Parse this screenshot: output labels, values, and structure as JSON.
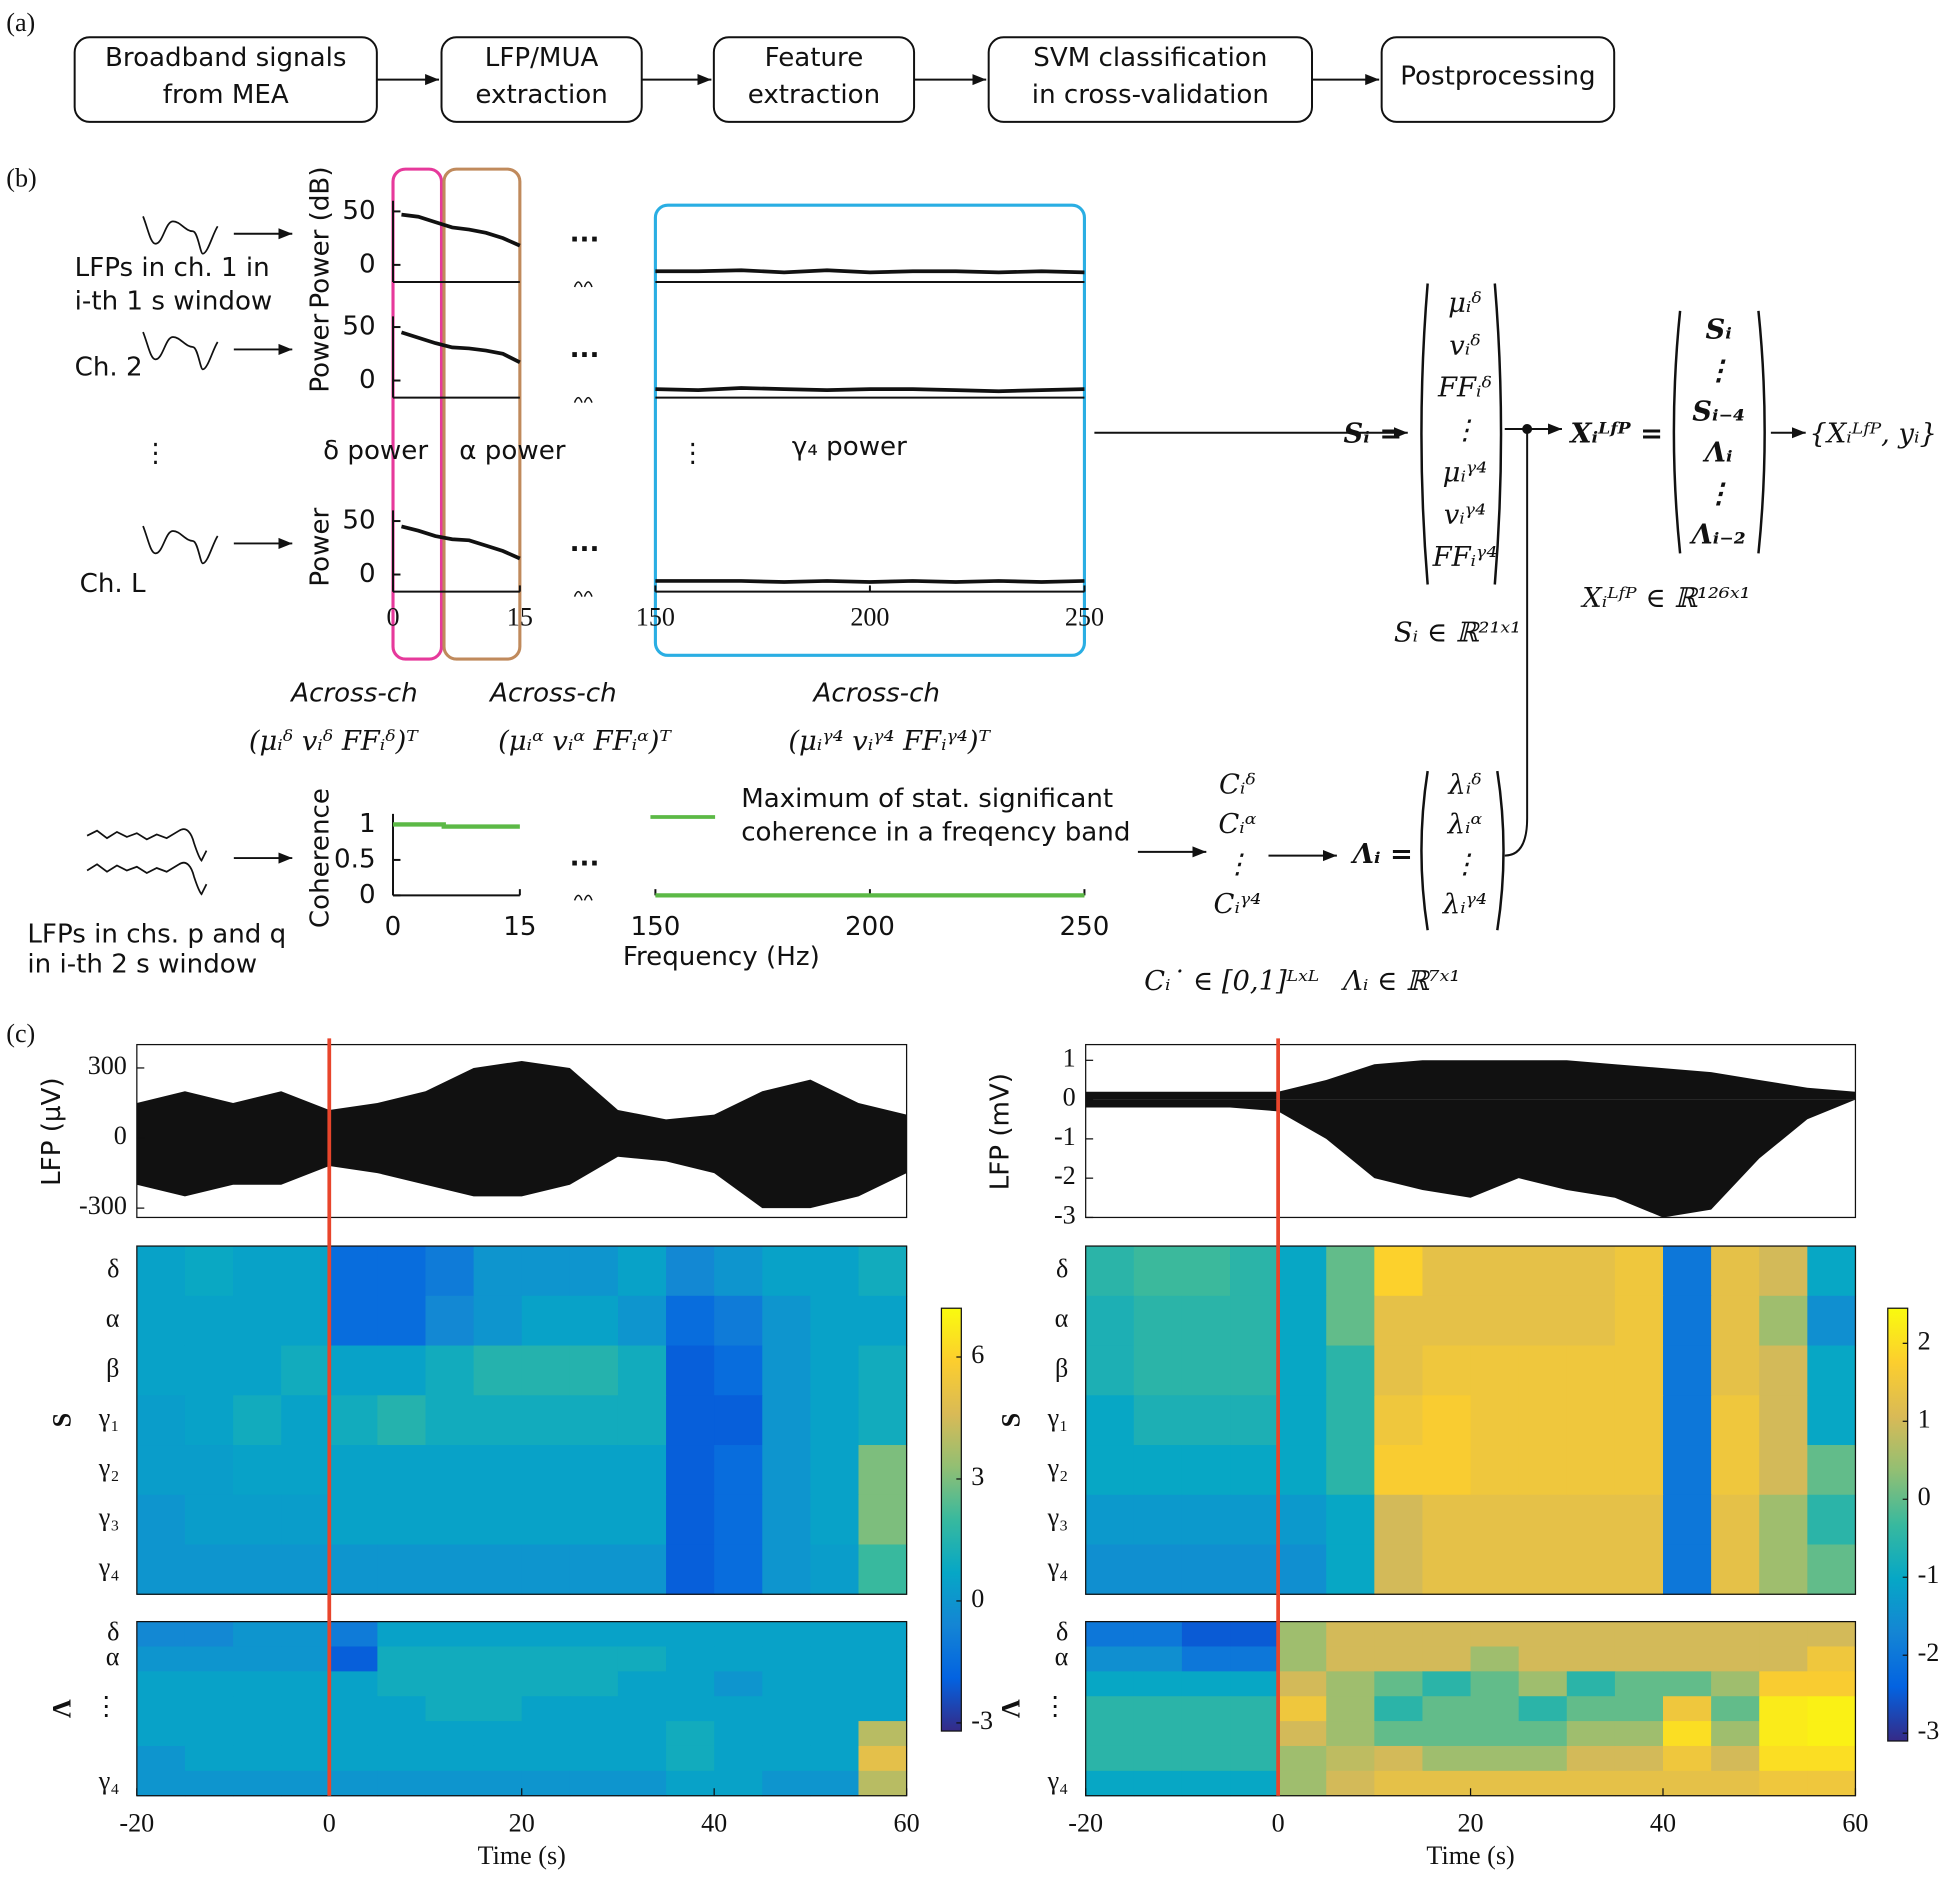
{
  "panel_labels": [
    "(a)",
    "(b)",
    "(c)"
  ],
  "pipeline": [
    [
      "Broadband signals",
      "from MEA"
    ],
    [
      "LFP/MUA",
      "extraction"
    ],
    [
      "Feature",
      "extraction"
    ],
    [
      "SVM classification",
      "in cross-validation"
    ],
    [
      "Postprocessing"
    ]
  ],
  "features": {
    "channel_labels": [
      [
        "LFPs in ch. 1 in",
        "i-th 1 s window"
      ],
      [
        "Ch. 2"
      ],
      [
        "Ch. L"
      ]
    ],
    "vdots": "⋮",
    "ellipsis": "...",
    "power": {
      "ylabels": [
        "Power (dB)",
        "Power",
        "Power"
      ],
      "ylim": [
        -16,
        60
      ],
      "yticks": [
        0,
        50
      ],
      "xticks": [
        0,
        15,
        150,
        200,
        250
      ],
      "curves": [
        {
          "x_low": [
            1,
            3,
            5,
            7,
            9,
            11,
            13,
            15
          ],
          "values_low": [
            47,
            45,
            40,
            35,
            33,
            30,
            25,
            18
          ],
          "x_high": [
            150,
            160,
            170,
            180,
            190,
            200,
            210,
            220,
            230,
            240,
            250
          ],
          "values_high": [
            -6,
            -6,
            -5,
            -7,
            -5,
            -7,
            -6,
            -6,
            -7,
            -6,
            -7
          ]
        },
        {
          "x_low": [
            1,
            3,
            5,
            7,
            9,
            11,
            13,
            15
          ],
          "values_low": [
            45,
            40,
            35,
            31,
            30,
            28,
            25,
            17
          ],
          "x_high": [
            150,
            160,
            170,
            180,
            190,
            200,
            210,
            220,
            230,
            240,
            250
          ],
          "values_high": [
            -8,
            -9,
            -7,
            -8,
            -9,
            -8,
            -8,
            -9,
            -10,
            -9,
            -8
          ]
        },
        {
          "x_low": [
            1,
            3,
            5,
            7,
            9,
            11,
            13,
            15
          ],
          "values_low": [
            45,
            41,
            36,
            33,
            32,
            27,
            22,
            15
          ],
          "x_high": [
            150,
            160,
            170,
            180,
            190,
            200,
            210,
            220,
            230,
            240,
            250
          ],
          "values_high": [
            -6,
            -6,
            -6,
            -7,
            -6,
            -7,
            -6,
            -7,
            -6,
            -7,
            -6
          ]
        }
      ]
    },
    "bands": [
      {
        "label": "δ power",
        "color": "#e6399b",
        "across": "Across-ch",
        "vector": "(μᵢᵟ   vᵢᵟ   FFᵢᵟ)ᵀ"
      },
      {
        "label": "α power",
        "color": "#c08a5c",
        "across": "Across-ch",
        "vector": "(μᵢᵅ   vᵢᵅ   FFᵢᵅ)ᵀ"
      },
      {
        "label": "γ₄ power",
        "color": "#2aaee3",
        "across": "Across-ch",
        "vector": "(μᵢᵞ⁴   vᵢᵞ⁴   FFᵢᵞ⁴)ᵀ"
      }
    ],
    "coherence": {
      "input_label": [
        "LFPs in chs. p and q",
        "in i-th 2 s window"
      ],
      "ylabel": "Coherence",
      "xlabel": "Frequency (Hz)",
      "ylim": [
        -0.05,
        1.15
      ],
      "yticks": [
        0,
        0.5,
        1
      ],
      "xticks": [
        0,
        15,
        150,
        200,
        250
      ],
      "color": "#5cb946",
      "legend": [
        "Maximum of stat. significant",
        "coherence in a freqency band"
      ],
      "x_low": [
        0,
        6,
        6,
        15
      ],
      "values_low": [
        1,
        1,
        0.97,
        0.97
      ],
      "x_high": [
        150,
        250
      ],
      "values_high": [
        0,
        0
      ]
    },
    "equations": {
      "S_lhs": "Sᵢ =",
      "S_items": [
        "μᵢᵟ",
        "vᵢᵟ",
        "FFᵢᵟ",
        "⋮",
        "μᵢᵞ⁴",
        "vᵢᵞ⁴",
        "FFᵢᵞ⁴"
      ],
      "S_dim": "Sᵢ ∈ ℝ²¹ˣ¹",
      "X_lhs": "Xᵢᴸᶠᴾ =",
      "X_items": [
        "Sᵢ",
        "⋮",
        "Sᵢ₋₄",
        "Λᵢ",
        "⋮",
        "Λᵢ₋₂"
      ],
      "X_out": "{Xᵢᴸᶠᴾ, yᵢ}",
      "X_dim": "Xᵢᴸᶠᴾ ∈ ℝ¹²⁶ˣ¹",
      "C_items": [
        "Cᵢᵟ",
        "Cᵢᵅ",
        "⋮",
        "Cᵢᵞ⁴"
      ],
      "L_lhs": "Λᵢ =",
      "L_items": [
        "λᵢᵟ",
        "λᵢᵅ",
        "⋮",
        "λᵢᵞ⁴"
      ],
      "C_dim": "Cᵢ˙ ∈ [0,1]ᴸˣᴸ",
      "L_dim": "Λᵢ ∈ ℝ⁷ˣ¹"
    }
  },
  "time_series": {
    "xlim": [
      -20,
      60
    ],
    "xticks": [
      -20,
      0,
      20,
      40,
      60
    ],
    "xlabel": "Time (s)",
    "onset": 0,
    "S_label": "S",
    "L_label": "Λ",
    "S_rows": [
      "δ",
      "α",
      "β",
      "γ₁",
      "γ₂",
      "γ₃",
      "γ₄"
    ],
    "L_rows": [
      "δ",
      "α",
      "⋮",
      "γ₄"
    ],
    "bin_starts": [
      -20,
      -15,
      -10,
      -5,
      0,
      5,
      10,
      15,
      20,
      25,
      30,
      35,
      40,
      45,
      50,
      55
    ],
    "t": [
      -20,
      -15,
      -10,
      -5,
      0,
      5,
      10,
      15,
      20,
      25,
      30,
      35,
      40,
      45,
      50,
      55,
      60
    ],
    "panels": [
      {
        "ylabel": "LFP (µV)",
        "ylim": [
          -340,
          400
        ],
        "yticks": [
          -300,
          0,
          300
        ],
        "upper": [
          150,
          200,
          150,
          200,
          120,
          150,
          200,
          300,
          330,
          300,
          120,
          80,
          100,
          200,
          250,
          150,
          100
        ],
        "lower": [
          -200,
          -250,
          -200,
          -200,
          -120,
          -150,
          -200,
          -250,
          -250,
          -200,
          -80,
          -100,
          -150,
          -300,
          -300,
          -250,
          -150
        ],
        "clim": [
          -3.2,
          7.2
        ],
        "cticks": [
          -3,
          0,
          3,
          6
        ],
        "S": [
          [
            0.5,
            0.8,
            0.5,
            0.5,
            -1.5,
            -1.5,
            -1,
            0,
            0,
            0,
            0.5,
            -0.5,
            0,
            0.5,
            0.5,
            1
          ],
          [
            0.5,
            0.5,
            0.5,
            0.5,
            -1.5,
            -1.5,
            -0.5,
            0,
            0.5,
            0.5,
            0,
            -1.5,
            -1,
            0,
            0.5,
            0.5
          ],
          [
            0.5,
            0.5,
            0.5,
            1,
            0.5,
            0.5,
            1,
            1.5,
            1.5,
            1.5,
            1,
            -2,
            -1.5,
            0,
            0.5,
            1
          ],
          [
            0.3,
            0.5,
            1,
            0.5,
            1,
            1.5,
            1,
            1,
            1,
            1,
            1,
            -2,
            -2,
            0,
            0.5,
            1
          ],
          [
            0.3,
            0.3,
            0.5,
            0.5,
            0.5,
            0.5,
            0.5,
            0.5,
            0.5,
            0.5,
            0.5,
            -2,
            -1.5,
            0,
            0.5,
            3
          ],
          [
            0,
            0.3,
            0.3,
            0.3,
            0.5,
            0.5,
            0.5,
            0.5,
            0.5,
            0.5,
            0.5,
            -2,
            -1.5,
            0,
            0.5,
            3
          ],
          [
            0,
            0,
            0,
            0,
            0,
            0,
            0,
            0,
            0,
            0,
            0,
            -2,
            -1.5,
            0,
            0.3,
            2
          ]
        ],
        "L": [
          [
            -0.5,
            -0.5,
            0,
            0,
            -1,
            0.5,
            0.5,
            0.5,
            0.5,
            0.5,
            0.5,
            0.5,
            0.5,
            0.5,
            0.5,
            0.5
          ],
          [
            0,
            0,
            0,
            0,
            -2,
            1,
            1,
            1,
            1,
            1,
            1,
            0.5,
            0.5,
            0.5,
            0.5,
            0.5
          ],
          [
            0.5,
            0.5,
            0.5,
            0.5,
            0.5,
            1,
            1,
            1,
            1,
            1,
            0.5,
            0.5,
            0,
            0.5,
            0.5,
            0.5
          ],
          [
            0.5,
            0.5,
            0.5,
            0.5,
            0.5,
            0.5,
            1,
            1,
            0.5,
            0.5,
            0.5,
            0.5,
            0.5,
            0.5,
            0.5,
            0.5
          ],
          [
            0.5,
            0.5,
            0.5,
            0.5,
            0.5,
            0.5,
            0.5,
            0.5,
            0.5,
            0.5,
            0.5,
            1,
            0.5,
            0.5,
            0.5,
            4
          ],
          [
            0,
            0.5,
            0.5,
            0.5,
            0.5,
            0.5,
            0.5,
            0.5,
            0.5,
            0.5,
            0.5,
            1,
            0.5,
            0.5,
            0.5,
            5
          ],
          [
            0,
            0,
            0,
            0,
            0,
            0,
            0,
            0,
            0,
            0,
            0,
            0.5,
            0.5,
            0,
            0,
            4
          ]
        ]
      },
      {
        "ylabel": "LFP (mV)",
        "ylim": [
          -3,
          1.4
        ],
        "yticks": [
          -3,
          -2,
          -1,
          0,
          1
        ],
        "upper": [
          0.2,
          0.2,
          0.2,
          0.2,
          0.2,
          0.5,
          0.9,
          1,
          1,
          1,
          1,
          0.9,
          0.8,
          0.7,
          0.5,
          0.3,
          0.2
        ],
        "lower": [
          -0.2,
          -0.2,
          -0.2,
          -0.2,
          -0.3,
          -1,
          -2,
          -2.3,
          -2.5,
          -2,
          -2.3,
          -2.5,
          -3,
          -2.8,
          -1.5,
          -0.5,
          0
        ],
        "clim": [
          -3.1,
          2.45
        ],
        "cticks": [
          -3,
          -2,
          -1,
          0,
          1,
          2
        ],
        "S": [
          [
            -0.5,
            -0.3,
            -0.3,
            -0.5,
            -1,
            0,
            1.8,
            1.3,
            1.3,
            1.3,
            1.3,
            1.5,
            -2,
            1.3,
            1,
            -1
          ],
          [
            -0.7,
            -0.5,
            -0.5,
            -0.5,
            -1,
            0,
            1.3,
            1.3,
            1.3,
            1.3,
            1.3,
            1.5,
            -2,
            1.3,
            0.5,
            -1.5
          ],
          [
            -0.7,
            -0.5,
            -0.5,
            -0.5,
            -1,
            -0.5,
            1.3,
            1.5,
            1.5,
            1.5,
            1.5,
            1.5,
            -2,
            1.3,
            1,
            -1
          ],
          [
            -1,
            -0.7,
            -0.7,
            -0.7,
            -1,
            -0.5,
            1.5,
            1.7,
            1.5,
            1.5,
            1.5,
            1.5,
            -2,
            1.5,
            1,
            -1
          ],
          [
            -1,
            -1,
            -1,
            -1,
            -1,
            -0.5,
            1.7,
            1.7,
            1.5,
            1.5,
            1.5,
            1.5,
            -2,
            1.5,
            1,
            0
          ],
          [
            -1.3,
            -1.3,
            -1.3,
            -1.3,
            -1.3,
            -1,
            1,
            1.3,
            1.3,
            1.3,
            1.3,
            1.3,
            -2,
            1.3,
            0.5,
            -0.5
          ],
          [
            -1.5,
            -1.5,
            -1.5,
            -1.5,
            -1.5,
            -1,
            1,
            1.3,
            1.3,
            1.3,
            1.3,
            1.3,
            -2,
            1.3,
            0.5,
            0
          ]
        ],
        "L": [
          [
            -2,
            -2,
            -2.5,
            -2.5,
            0.5,
            1,
            1,
            1,
            1,
            1,
            1,
            1,
            1,
            1,
            1,
            1
          ],
          [
            -1.5,
            -1.5,
            -2,
            -2,
            0.5,
            1,
            1,
            1,
            0.5,
            1,
            1,
            1,
            1,
            1,
            1,
            1.5
          ],
          [
            -1,
            -1,
            -1,
            -1,
            1,
            0.5,
            0,
            -0.5,
            0,
            0.5,
            -0.5,
            0,
            0,
            0.5,
            1.7,
            1.7
          ],
          [
            -0.5,
            -0.5,
            -0.5,
            -0.5,
            1.5,
            0.5,
            -0.5,
            0,
            0,
            -0.5,
            0,
            0,
            1.5,
            0,
            2.2,
            2.3
          ],
          [
            -0.5,
            -0.5,
            -0.5,
            -0.5,
            1,
            0.5,
            0,
            0,
            0,
            0,
            0.5,
            0.5,
            2,
            0.5,
            2.2,
            2.3
          ],
          [
            -0.5,
            -0.5,
            -0.5,
            -0.5,
            0.5,
            0.8,
            1,
            0.5,
            0.5,
            0.5,
            1,
            1,
            1.5,
            1,
            2,
            2
          ],
          [
            -1,
            -1,
            -1,
            -1,
            0.5,
            1,
            1.3,
            1.3,
            1.3,
            1.3,
            1.3,
            1.3,
            1.3,
            1.3,
            1.5,
            1.5
          ]
        ]
      }
    ]
  }
}
